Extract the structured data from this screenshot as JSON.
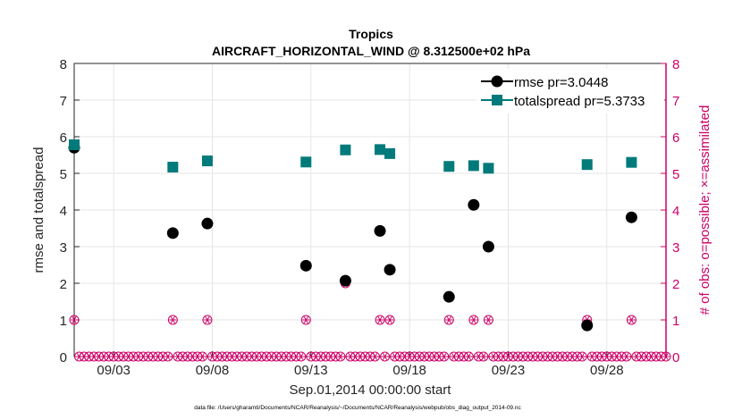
{
  "chart_data": {
    "type": "scatter",
    "title": "Tropics",
    "subtitle": "AIRCRAFT_HORIZONTAL_WIND @ 8.312500e+02 hPa",
    "xlabel": "Sep.01,2014 00:00:00 start",
    "ylabel_left": "rmse and totalspread",
    "ylabel_right": "# of obs: o=possible; ×=assimilated",
    "footnote": "data file: /Users/gharamti/Documents/NCAR/Reanalysis/~/Documents/NCAR/Reanalysis/webpub/obs_diag_output_2014-09.nc",
    "xlim": [
      1,
      31
    ],
    "ylim_left": [
      0,
      8
    ],
    "ylim_right": [
      0,
      8
    ],
    "yticks": [
      0,
      1,
      2,
      3,
      4,
      5,
      6,
      7,
      8
    ],
    "xtick_labels": [
      {
        "x": 3,
        "label": "09/03"
      },
      {
        "x": 8,
        "label": "09/08"
      },
      {
        "x": 13,
        "label": "09/13"
      },
      {
        "x": 18,
        "label": "09/18"
      },
      {
        "x": 23,
        "label": "09/23"
      },
      {
        "x": 28,
        "label": "09/28"
      }
    ],
    "legend_position": "top-right",
    "series": [
      {
        "name": "rmse pr=3.0448",
        "color": "#000000",
        "marker": "circle",
        "x": [
          1.0,
          6.0,
          7.75,
          12.75,
          14.75,
          16.5,
          17.0,
          20.0,
          21.25,
          22.0,
          27.0,
          29.25
        ],
        "y": [
          5.7,
          3.37,
          3.63,
          2.48,
          2.07,
          3.43,
          2.37,
          1.63,
          4.14,
          3.0,
          0.85,
          3.8
        ]
      },
      {
        "name": "totalspread pr=5.3733",
        "color": "#007a7a",
        "marker": "square",
        "x": [
          1.0,
          6.0,
          7.75,
          12.75,
          14.75,
          16.5,
          17.0,
          20.0,
          21.25,
          22.0,
          27.0,
          29.25
        ],
        "y": [
          5.78,
          5.17,
          5.34,
          5.31,
          5.64,
          5.65,
          5.54,
          5.19,
          5.21,
          5.14,
          5.24,
          5.3
        ]
      }
    ],
    "obs_counts": {
      "color": "#cc0066",
      "possible_marker": "circle",
      "assimilated_marker": "asterisk",
      "x_start": 1.0,
      "x_step": 0.25,
      "nonzero": [
        {
          "x": 1.0,
          "value": 1
        },
        {
          "x": 6.0,
          "value": 1
        },
        {
          "x": 7.75,
          "value": 1
        },
        {
          "x": 12.75,
          "value": 1
        },
        {
          "x": 14.75,
          "value": 2
        },
        {
          "x": 16.5,
          "value": 1
        },
        {
          "x": 17.0,
          "value": 1
        },
        {
          "x": 20.0,
          "value": 1
        },
        {
          "x": 21.25,
          "value": 1
        },
        {
          "x": 22.0,
          "value": 1
        },
        {
          "x": 27.0,
          "value": 1
        },
        {
          "x": 29.25,
          "value": 1
        }
      ],
      "default_value": 0
    }
  },
  "colors": {
    "left_axis": "#262626",
    "right_axis": "#cc0066",
    "grid": "#e6e6e6"
  }
}
